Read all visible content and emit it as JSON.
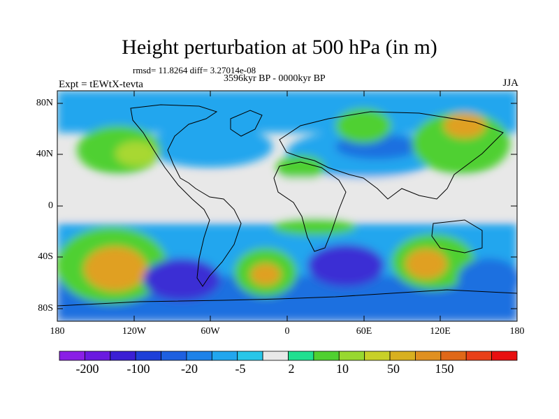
{
  "title": "Height perturbation at 500 hPa (in m)",
  "stats": "rmsd= 11.8264 diff= 3.27014e-08",
  "period": "3596kyr BP - 0000kyr BP",
  "experiment": "Expt = tEWtX-tevta",
  "season": "JJA",
  "y_axis_labels": [
    "80N",
    "40N",
    "0",
    "40S",
    "80S"
  ],
  "x_axis_labels": [
    "180",
    "120W",
    "60W",
    "0",
    "60E",
    "120E",
    "180"
  ],
  "colorbar": {
    "labels": [
      "-200",
      "-100",
      "-20",
      "-5",
      "2",
      "10",
      "50",
      "150"
    ],
    "colors": [
      "#8a1fe6",
      "#6a1ae0",
      "#3b1fd4",
      "#1e40d8",
      "#1e60e0",
      "#1e82e8",
      "#22a6ee",
      "#28c6e8",
      "#e8e8e8",
      "#20e090",
      "#50d030",
      "#98d830",
      "#c8d028",
      "#d8b020",
      "#e09020",
      "#e06818",
      "#e84018",
      "#e81010"
    ]
  },
  "field_colors": {
    "neutral": "#e8e8e8",
    "light_blue": "#22a6ee",
    "blue": "#1e70e0",
    "deep_blue": "#3b2fd4",
    "green": "#50d030",
    "yellow_green": "#a8d830",
    "orange": "#e0a020"
  }
}
